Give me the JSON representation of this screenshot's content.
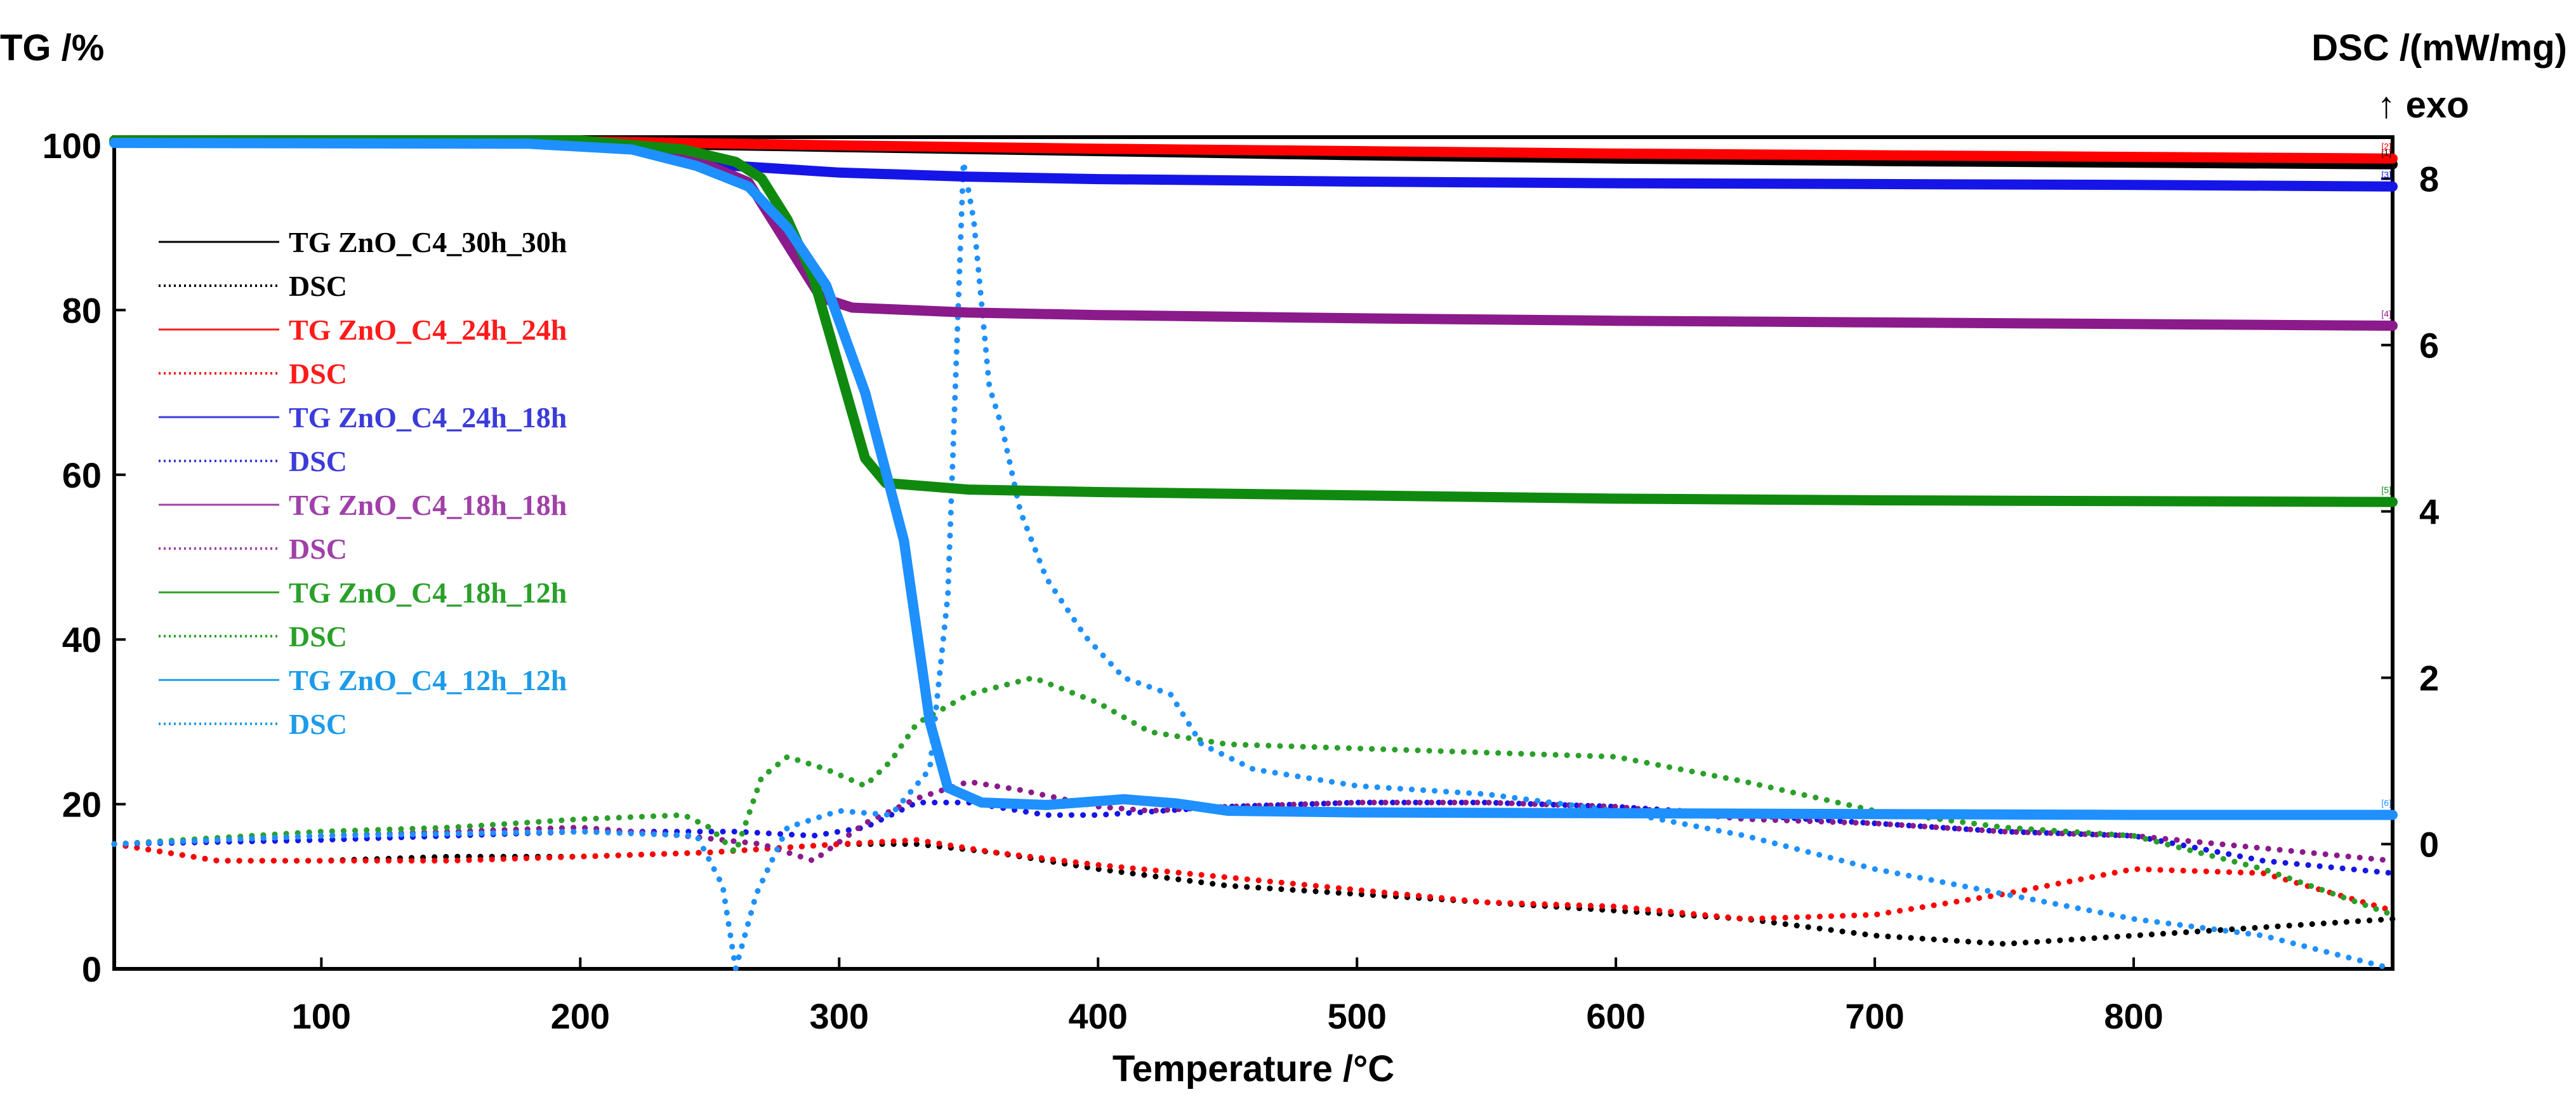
{
  "chart_data": {
    "type": "line",
    "x_axis": {
      "label": "Temperature /°C",
      "range": [
        20,
        900
      ],
      "ticks": [
        100,
        200,
        300,
        400,
        500,
        600,
        700,
        800
      ]
    },
    "y_left": {
      "label": "TG /%",
      "range": [
        0,
        101
      ],
      "ticks": [
        0,
        20,
        40,
        60,
        80,
        100
      ]
    },
    "y_right": {
      "label": "DSC /(mW/mg)",
      "sublabel": "↑ exo",
      "range": [
        -1.5,
        8.5
      ],
      "ticks": [
        0,
        2,
        4,
        6,
        8
      ]
    },
    "legend": {
      "placement": "top-left",
      "entries": [
        {
          "label": "TG ZnO_C4_30h_30h",
          "style": "solid",
          "color": "#000000"
        },
        {
          "label": "DSC",
          "style": "dotted",
          "color": "#000000"
        },
        {
          "label": "TG ZnO_C4_24h_24h",
          "style": "solid",
          "color": "#ff1a1a"
        },
        {
          "label": "DSC",
          "style": "dotted",
          "color": "#ff1a1a"
        },
        {
          "label": "TG ZnO_C4_24h_18h",
          "style": "solid",
          "color": "#3b3bdb"
        },
        {
          "label": "DSC",
          "style": "dotted",
          "color": "#3b3bdb"
        },
        {
          "label": "TG ZnO_C4_18h_18h",
          "style": "solid",
          "color": "#a040a8"
        },
        {
          "label": "DSC",
          "style": "dotted",
          "color": "#a040a8"
        },
        {
          "label": "TG ZnO_C4_18h_12h",
          "style": "solid",
          "color": "#2aa02a"
        },
        {
          "label": "DSC",
          "style": "dotted",
          "color": "#2aa02a"
        },
        {
          "label": "TG ZnO_C4_12h_12h",
          "style": "solid",
          "color": "#1c9be8"
        },
        {
          "label": "DSC",
          "style": "dotted",
          "color": "#1c9be8"
        }
      ]
    },
    "series": [
      {
        "name": "TG ZnO_C4_30h_30h",
        "axis": "left",
        "style": "solid",
        "color": "#000000",
        "end_marker": "[1]",
        "points": [
          [
            20,
            100.5
          ],
          [
            200,
            100.3
          ],
          [
            300,
            99.8
          ],
          [
            400,
            99.3
          ],
          [
            500,
            98.8
          ],
          [
            600,
            98.4
          ],
          [
            700,
            98.1
          ],
          [
            800,
            97.9
          ],
          [
            900,
            97.7
          ]
        ]
      },
      {
        "name": "TG ZnO_C4_24h_24h",
        "axis": "left",
        "style": "solid",
        "color": "#ff0000",
        "end_marker": "[2]",
        "points": [
          [
            20,
            100.6
          ],
          [
            200,
            100.5
          ],
          [
            300,
            100.0
          ],
          [
            400,
            99.6
          ],
          [
            500,
            99.3
          ],
          [
            600,
            99.0
          ],
          [
            700,
            98.8
          ],
          [
            800,
            98.6
          ],
          [
            900,
            98.4
          ]
        ]
      },
      {
        "name": "TG ZnO_C4_24h_18h",
        "axis": "left",
        "style": "solid",
        "color": "#1515e8",
        "end_marker": "[3]",
        "points": [
          [
            20,
            100.5
          ],
          [
            200,
            100.2
          ],
          [
            230,
            99.5
          ],
          [
            260,
            97.5
          ],
          [
            300,
            96.7
          ],
          [
            350,
            96.2
          ],
          [
            400,
            95.9
          ],
          [
            500,
            95.6
          ],
          [
            600,
            95.4
          ],
          [
            700,
            95.3
          ],
          [
            800,
            95.2
          ],
          [
            900,
            95.0
          ]
        ]
      },
      {
        "name": "TG ZnO_C4_18h_18h",
        "axis": "left",
        "style": "solid",
        "color": "#8b1a8b",
        "end_marker": "[4]",
        "points": [
          [
            20,
            100.5
          ],
          [
            200,
            100.2
          ],
          [
            230,
            99.3
          ],
          [
            250,
            97.5
          ],
          [
            265,
            95.5
          ],
          [
            280,
            88.0
          ],
          [
            293,
            81.5
          ],
          [
            305,
            80.3
          ],
          [
            350,
            79.7
          ],
          [
            400,
            79.4
          ],
          [
            500,
            79.0
          ],
          [
            600,
            78.7
          ],
          [
            700,
            78.5
          ],
          [
            800,
            78.3
          ],
          [
            900,
            78.1
          ]
        ]
      },
      {
        "name": "TG ZnO_C4_18h_12h",
        "axis": "left",
        "style": "solid",
        "color": "#0f8a0f",
        "end_marker": "[5]",
        "points": [
          [
            20,
            100.6
          ],
          [
            200,
            100.6
          ],
          [
            240,
            99.5
          ],
          [
            260,
            98.0
          ],
          [
            270,
            96.0
          ],
          [
            280,
            91.0
          ],
          [
            290,
            84.0
          ],
          [
            300,
            73.0
          ],
          [
            310,
            62.0
          ],
          [
            318,
            59.0
          ],
          [
            350,
            58.2
          ],
          [
            400,
            57.9
          ],
          [
            500,
            57.5
          ],
          [
            600,
            57.1
          ],
          [
            700,
            56.9
          ],
          [
            800,
            56.8
          ],
          [
            900,
            56.7
          ]
        ]
      },
      {
        "name": "TG ZnO_C4_12h_12h",
        "axis": "left",
        "style": "solid",
        "color": "#1e90ff",
        "end_marker": "[6]",
        "points": [
          [
            20,
            100.3
          ],
          [
            180,
            100.2
          ],
          [
            220,
            99.5
          ],
          [
            245,
            97.5
          ],
          [
            265,
            95.0
          ],
          [
            280,
            90.0
          ],
          [
            295,
            83.0
          ],
          [
            310,
            70.0
          ],
          [
            325,
            52.0
          ],
          [
            335,
            30.0
          ],
          [
            342,
            22.0
          ],
          [
            355,
            20.2
          ],
          [
            380,
            19.9
          ],
          [
            410,
            20.6
          ],
          [
            430,
            20.1
          ],
          [
            450,
            19.2
          ],
          [
            500,
            19.0
          ],
          [
            600,
            18.9
          ],
          [
            700,
            18.8
          ],
          [
            800,
            18.7
          ],
          [
            900,
            18.7
          ]
        ]
      },
      {
        "name": "DSC",
        "axis": "right",
        "style": "dotted",
        "color": "#000000",
        "parent": "TG ZnO_C4_30h_30h",
        "points": [
          [
            20,
            0.0
          ],
          [
            60,
            -0.2
          ],
          [
            100,
            -0.2
          ],
          [
            150,
            -0.15
          ],
          [
            200,
            -0.15
          ],
          [
            250,
            -0.1
          ],
          [
            300,
            0.0
          ],
          [
            330,
            0.0
          ],
          [
            360,
            -0.1
          ],
          [
            400,
            -0.3
          ],
          [
            450,
            -0.5
          ],
          [
            500,
            -0.6
          ],
          [
            550,
            -0.7
          ],
          [
            600,
            -0.8
          ],
          [
            650,
            -0.9
          ],
          [
            700,
            -1.1
          ],
          [
            750,
            -1.2
          ],
          [
            800,
            -1.1
          ],
          [
            850,
            -1.0
          ],
          [
            900,
            -0.9
          ]
        ]
      },
      {
        "name": "DSC",
        "axis": "right",
        "style": "dotted",
        "color": "#ff0000",
        "parent": "TG ZnO_C4_24h_24h",
        "points": [
          [
            20,
            0.0
          ],
          [
            60,
            -0.2
          ],
          [
            100,
            -0.2
          ],
          [
            150,
            -0.2
          ],
          [
            200,
            -0.15
          ],
          [
            250,
            -0.1
          ],
          [
            300,
            0.0
          ],
          [
            330,
            0.05
          ],
          [
            360,
            -0.1
          ],
          [
            400,
            -0.25
          ],
          [
            450,
            -0.4
          ],
          [
            500,
            -0.55
          ],
          [
            550,
            -0.7
          ],
          [
            600,
            -0.75
          ],
          [
            650,
            -0.9
          ],
          [
            700,
            -0.85
          ],
          [
            750,
            -0.6
          ],
          [
            800,
            -0.3
          ],
          [
            850,
            -0.35
          ],
          [
            900,
            -0.8
          ]
        ]
      },
      {
        "name": "DSC",
        "axis": "right",
        "style": "dotted",
        "color": "#1515e8",
        "parent": "TG ZnO_C4_24h_18h",
        "points": [
          [
            20,
            0.0
          ],
          [
            100,
            0.05
          ],
          [
            200,
            0.15
          ],
          [
            240,
            0.15
          ],
          [
            260,
            0.15
          ],
          [
            290,
            0.1
          ],
          [
            310,
            0.2
          ],
          [
            330,
            0.5
          ],
          [
            350,
            0.5
          ],
          [
            380,
            0.35
          ],
          [
            400,
            0.35
          ],
          [
            450,
            0.45
          ],
          [
            500,
            0.5
          ],
          [
            550,
            0.5
          ],
          [
            600,
            0.45
          ],
          [
            650,
            0.35
          ],
          [
            700,
            0.25
          ],
          [
            750,
            0.15
          ],
          [
            800,
            0.1
          ],
          [
            850,
            -0.2
          ],
          [
            900,
            -0.35
          ]
        ]
      },
      {
        "name": "DSC",
        "axis": "right",
        "style": "dotted",
        "color": "#8b1a8b",
        "parent": "TG ZnO_C4_18h_18h",
        "points": [
          [
            20,
            0.0
          ],
          [
            100,
            0.1
          ],
          [
            200,
            0.2
          ],
          [
            240,
            0.1
          ],
          [
            270,
            0.0
          ],
          [
            290,
            -0.2
          ],
          [
            310,
            0.25
          ],
          [
            330,
            0.55
          ],
          [
            350,
            0.75
          ],
          [
            370,
            0.65
          ],
          [
            400,
            0.45
          ],
          [
            420,
            0.4
          ],
          [
            450,
            0.45
          ],
          [
            500,
            0.5
          ],
          [
            550,
            0.5
          ],
          [
            600,
            0.45
          ],
          [
            650,
            0.3
          ],
          [
            700,
            0.25
          ],
          [
            750,
            0.15
          ],
          [
            800,
            0.1
          ],
          [
            850,
            -0.05
          ],
          [
            900,
            -0.2
          ]
        ]
      },
      {
        "name": "DSC",
        "axis": "right",
        "style": "dotted",
        "color": "#2aa02a",
        "parent": "TG ZnO_C4_18h_12h",
        "points": [
          [
            20,
            0.0
          ],
          [
            100,
            0.15
          ],
          [
            150,
            0.2
          ],
          [
            200,
            0.3
          ],
          [
            240,
            0.35
          ],
          [
            250,
            0.2
          ],
          [
            260,
            -0.1
          ],
          [
            270,
            0.8
          ],
          [
            280,
            1.05
          ],
          [
            295,
            0.9
          ],
          [
            310,
            0.7
          ],
          [
            320,
            1.0
          ],
          [
            330,
            1.45
          ],
          [
            350,
            1.8
          ],
          [
            375,
            2.0
          ],
          [
            400,
            1.7
          ],
          [
            420,
            1.35
          ],
          [
            450,
            1.2
          ],
          [
            500,
            1.15
          ],
          [
            550,
            1.1
          ],
          [
            600,
            1.05
          ],
          [
            650,
            0.75
          ],
          [
            700,
            0.4
          ],
          [
            750,
            0.2
          ],
          [
            800,
            0.1
          ],
          [
            850,
            -0.3
          ],
          [
            900,
            -0.85
          ]
        ]
      },
      {
        "name": "DSC",
        "axis": "right",
        "style": "dotted",
        "color": "#1e90ff",
        "parent": "TG ZnO_C4_12h_12h",
        "points": [
          [
            20,
            0.0
          ],
          [
            100,
            0.1
          ],
          [
            200,
            0.15
          ],
          [
            245,
            0.1
          ],
          [
            255,
            -0.5
          ],
          [
            260,
            -1.5
          ],
          [
            268,
            -0.6
          ],
          [
            280,
            0.2
          ],
          [
            300,
            0.4
          ],
          [
            320,
            0.35
          ],
          [
            335,
            0.9
          ],
          [
            342,
            3.0
          ],
          [
            348,
            8.2
          ],
          [
            352,
            7.5
          ],
          [
            358,
            5.5
          ],
          [
            363,
            5.0
          ],
          [
            370,
            4.0
          ],
          [
            380,
            3.2
          ],
          [
            395,
            2.5
          ],
          [
            410,
            2.0
          ],
          [
            428,
            1.8
          ],
          [
            440,
            1.2
          ],
          [
            460,
            0.9
          ],
          [
            500,
            0.7
          ],
          [
            550,
            0.6
          ],
          [
            600,
            0.4
          ],
          [
            650,
            0.1
          ],
          [
            700,
            -0.3
          ],
          [
            750,
            -0.6
          ],
          [
            800,
            -0.9
          ],
          [
            850,
            -1.1
          ],
          [
            900,
            -1.5
          ]
        ]
      }
    ]
  }
}
